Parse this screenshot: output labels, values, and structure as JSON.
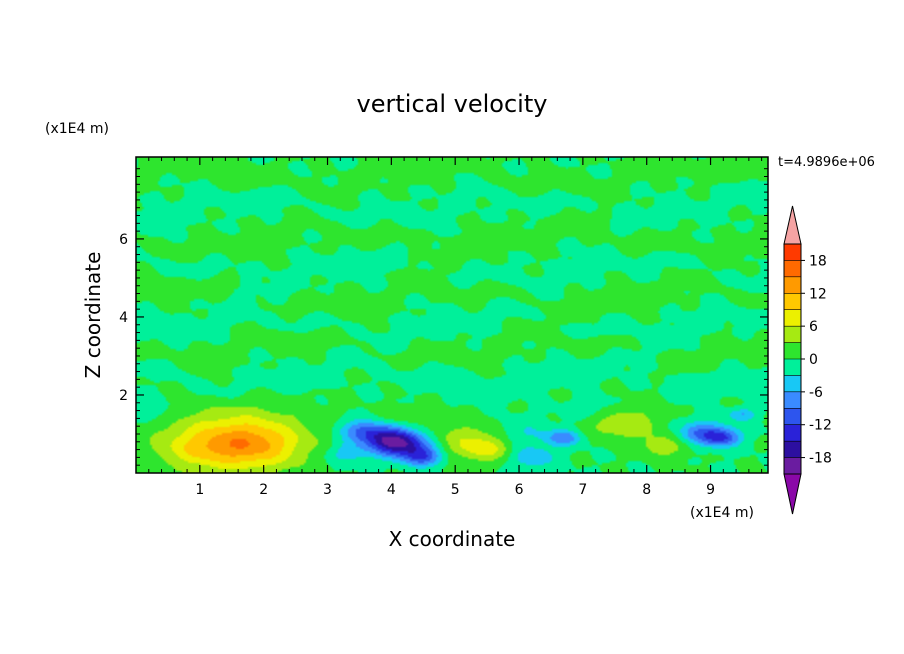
{
  "chart_data": {
    "type": "heatmap",
    "title": "vertical velocity",
    "xlabel": "X coordinate",
    "ylabel": "Z coordinate",
    "x_unit": "(x1E4 m)",
    "y_unit": "(x1E4 m)",
    "time_label": "t=4.9896e+06",
    "xlim": [
      0,
      9.9
    ],
    "ylim": [
      0,
      8.1
    ],
    "x_ticks": [
      "1",
      "2",
      "3",
      "4",
      "5",
      "6",
      "7",
      "8",
      "9"
    ],
    "y_ticks": [
      "2",
      "4",
      "6"
    ],
    "colorbar": {
      "range": [
        -21,
        21
      ],
      "ticks": [
        "18",
        "12",
        "6",
        "0",
        "-6",
        "-12",
        "-18"
      ],
      "levels": [
        -21,
        -18,
        -15,
        -12,
        -9,
        -6,
        -3,
        0,
        3,
        6,
        9,
        12,
        15,
        18,
        21
      ],
      "colors": [
        "#6a1ca0",
        "#2c0fa0",
        "#2a22d8",
        "#2d55ee",
        "#3a8bff",
        "#18c8f5",
        "#00f09a",
        "#2ee52e",
        "#a6ea12",
        "#ecf000",
        "#ffc800",
        "#ff9a00",
        "#ff6a00",
        "#ff3a00",
        "#ee1020"
      ],
      "under_color": "#8a08a8",
      "over_color": "#f5a3a3"
    },
    "features": [
      {
        "x": 1.6,
        "z": 0.8,
        "w": 0.75,
        "value": 11
      },
      {
        "x": 1.8,
        "z": 0.7,
        "w": 0.45,
        "value": 4
      },
      {
        "x": 0.9,
        "z": 0.6,
        "w": 0.4,
        "value": 3
      },
      {
        "x": 3.5,
        "z": 1.1,
        "w": 0.25,
        "value": -7
      },
      {
        "x": 3.9,
        "z": 0.9,
        "w": 0.3,
        "value": -12
      },
      {
        "x": 4.2,
        "z": 0.7,
        "w": 0.3,
        "value": -14
      },
      {
        "x": 4.5,
        "z": 0.4,
        "w": 0.22,
        "value": -10
      },
      {
        "x": 3.3,
        "z": 0.5,
        "w": 0.25,
        "value": -5
      },
      {
        "x": 4.15,
        "z": 1.5,
        "w": 0.2,
        "value": 3
      },
      {
        "x": 5.3,
        "z": 0.8,
        "w": 0.45,
        "value": 6
      },
      {
        "x": 5.5,
        "z": 0.6,
        "w": 0.25,
        "value": 4
      },
      {
        "x": 6.0,
        "z": 1.0,
        "w": 0.35,
        "value": -4
      },
      {
        "x": 6.2,
        "z": 0.4,
        "w": 0.25,
        "value": -6
      },
      {
        "x": 6.7,
        "z": 0.9,
        "w": 0.2,
        "value": -8
      },
      {
        "x": 7.6,
        "z": 1.3,
        "w": 0.4,
        "value": 6
      },
      {
        "x": 8.3,
        "z": 0.7,
        "w": 0.3,
        "value": 5
      },
      {
        "x": 8.9,
        "z": 1.0,
        "w": 0.3,
        "value": -10
      },
      {
        "x": 9.2,
        "z": 0.9,
        "w": 0.2,
        "value": -8
      },
      {
        "x": 9.5,
        "z": 1.5,
        "w": 0.15,
        "value": -6
      },
      {
        "x": 7.2,
        "z": 1.6,
        "w": 0.3,
        "value": -3
      },
      {
        "x": 0.2,
        "z": 1.6,
        "w": 0.25,
        "value": -3
      }
    ],
    "bands": [
      {
        "z": 7.6,
        "value": 1.2
      },
      {
        "z": 6.8,
        "value": -1.0
      },
      {
        "z": 6.0,
        "value": 1.3
      },
      {
        "z": 5.2,
        "value": -1.0
      },
      {
        "z": 4.5,
        "value": 1.2
      },
      {
        "z": 3.8,
        "value": -1.1
      },
      {
        "z": 3.2,
        "value": 1.3
      },
      {
        "z": 2.5,
        "value": -1.2
      }
    ]
  }
}
